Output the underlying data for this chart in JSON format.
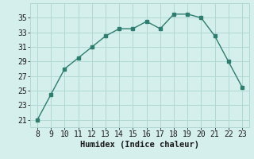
{
  "x": [
    8,
    9,
    10,
    11,
    12,
    13,
    14,
    15,
    16,
    17,
    18,
    19,
    20,
    21,
    22,
    23
  ],
  "y": [
    21,
    24.5,
    28,
    29.5,
    31,
    32.5,
    33.5,
    33.5,
    34.5,
    33.5,
    35.5,
    35.5,
    35,
    32.5,
    29,
    25.5
  ],
  "line_color": "#2e7d6e",
  "marker": "s",
  "marker_size": 2.5,
  "bg_color": "#d5efed",
  "grid_color": "#b0d8d4",
  "xlabel": "Humidex (Indice chaleur)",
  "xlabel_fontsize": 7.5,
  "tick_fontsize": 7,
  "ylim": [
    20,
    37
  ],
  "yticks": [
    21,
    23,
    25,
    27,
    29,
    31,
    33,
    35
  ],
  "xticks": [
    8,
    9,
    10,
    11,
    12,
    13,
    14,
    15,
    16,
    17,
    18,
    19,
    20,
    21,
    22,
    23
  ],
  "line_width": 1.0,
  "xlim": [
    7.5,
    23.5
  ]
}
